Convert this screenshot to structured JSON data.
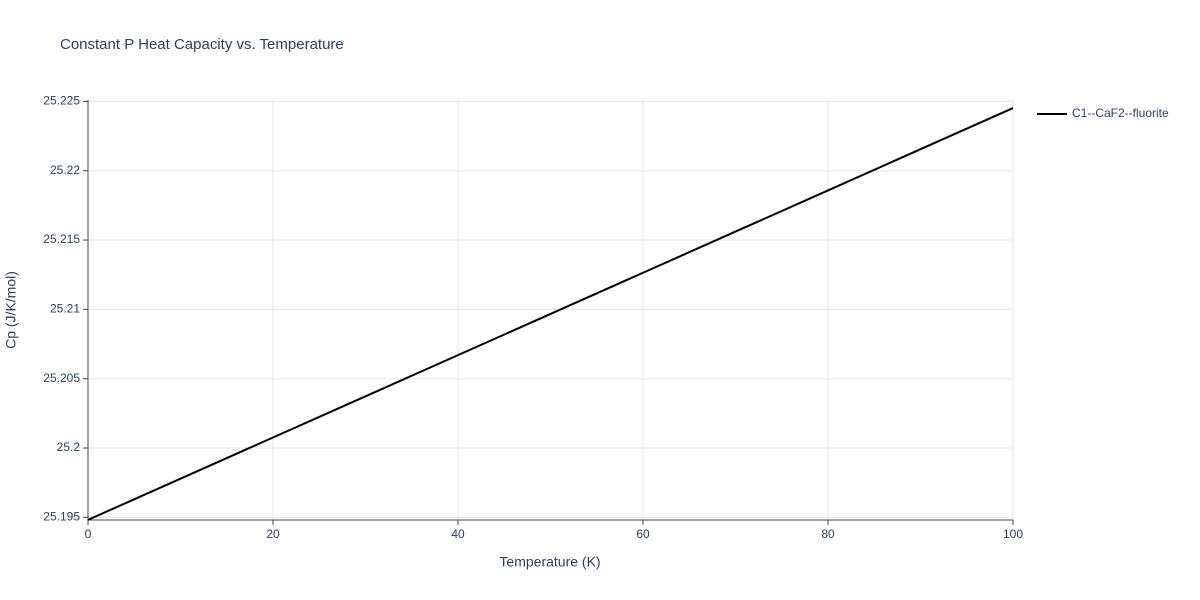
{
  "chart_data": {
    "type": "line",
    "title": "Constant P Heat Capacity vs. Temperature",
    "x_label": "Temperature (K)",
    "y_label": "Cp (J/K/mol)",
    "x": [
      0,
      10,
      20,
      30,
      40,
      50,
      60,
      70,
      80,
      90,
      100
    ],
    "series": [
      {
        "name": "C1--CaF2--fluorite",
        "color": "#000000",
        "values": [
          25.19482,
          25.19779,
          25.20076,
          25.20373,
          25.2067,
          25.20967,
          25.21264,
          25.21561,
          25.21858,
          25.22155,
          25.22452
        ]
      }
    ],
    "xlim": [
      0,
      100
    ],
    "xticks": [
      0,
      20,
      40,
      60,
      80,
      100
    ],
    "ylim": [
      25.19481,
      25.2251
    ],
    "yticks": [
      25.195,
      25.2,
      25.205,
      25.21,
      25.215,
      25.22,
      25.225
    ],
    "grid": true,
    "legend": "right"
  }
}
